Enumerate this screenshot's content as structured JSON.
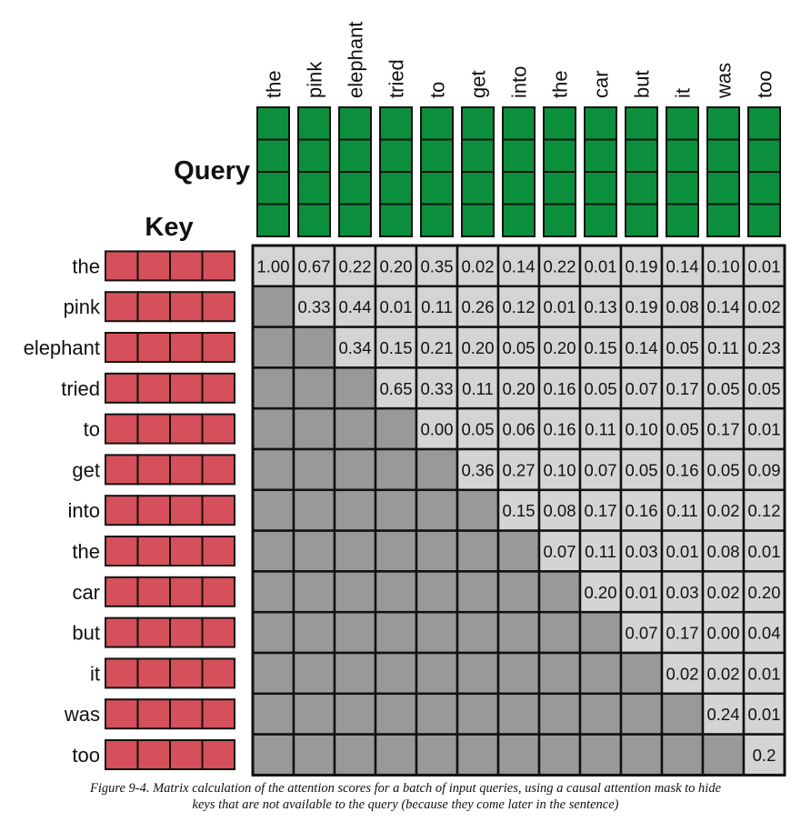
{
  "labels": {
    "query": "Query",
    "key": "Key"
  },
  "tokens": [
    "the",
    "pink",
    "elephant",
    "tried",
    "to",
    "get",
    "into",
    "the",
    "car",
    "but",
    "it",
    "was",
    "too"
  ],
  "scores": [
    [
      "1.00",
      "0.67",
      "0.22",
      "0.20",
      "0.35",
      "0.02",
      "0.14",
      "0.22",
      "0.01",
      "0.19",
      "0.14",
      "0.10",
      "0.01"
    ],
    [
      null,
      "0.33",
      "0.44",
      "0.01",
      "0.11",
      "0.26",
      "0.12",
      "0.01",
      "0.13",
      "0.19",
      "0.08",
      "0.14",
      "0.02"
    ],
    [
      null,
      null,
      "0.34",
      "0.15",
      "0.21",
      "0.20",
      "0.05",
      "0.20",
      "0.15",
      "0.14",
      "0.05",
      "0.11",
      "0.23"
    ],
    [
      null,
      null,
      null,
      "0.65",
      "0.33",
      "0.11",
      "0.20",
      "0.16",
      "0.05",
      "0.07",
      "0.17",
      "0.05",
      "0.05"
    ],
    [
      null,
      null,
      null,
      null,
      "0.00",
      "0.05",
      "0.06",
      "0.16",
      "0.11",
      "0.10",
      "0.05",
      "0.17",
      "0.01"
    ],
    [
      null,
      null,
      null,
      null,
      null,
      "0.36",
      "0.27",
      "0.10",
      "0.07",
      "0.05",
      "0.16",
      "0.05",
      "0.09"
    ],
    [
      null,
      null,
      null,
      null,
      null,
      null,
      "0.15",
      "0.08",
      "0.17",
      "0.16",
      "0.11",
      "0.02",
      "0.12"
    ],
    [
      null,
      null,
      null,
      null,
      null,
      null,
      null,
      "0.07",
      "0.11",
      "0.03",
      "0.01",
      "0.08",
      "0.01"
    ],
    [
      null,
      null,
      null,
      null,
      null,
      null,
      null,
      null,
      "0.20",
      "0.01",
      "0.03",
      "0.02",
      "0.20"
    ],
    [
      null,
      null,
      null,
      null,
      null,
      null,
      null,
      null,
      null,
      "0.07",
      "0.17",
      "0.00",
      "0.04"
    ],
    [
      null,
      null,
      null,
      null,
      null,
      null,
      null,
      null,
      null,
      null,
      "0.02",
      "0.02",
      "0.01"
    ],
    [
      null,
      null,
      null,
      null,
      null,
      null,
      null,
      null,
      null,
      null,
      null,
      "0.24",
      "0.01"
    ],
    [
      null,
      null,
      null,
      null,
      null,
      null,
      null,
      null,
      null,
      null,
      null,
      null,
      "0.2"
    ]
  ],
  "colors": {
    "query_vector": "#0c8f3c",
    "key_vector": "#d5505a",
    "visible_cell": "#d4d4d4",
    "masked_cell": "#999999",
    "line": "#111111"
  },
  "caption": {
    "line1": "Figure 9-4. Matrix calculation of the attention scores for a batch of input queries, using a causal attention mask to hide",
    "line2": "keys that are not available to the query (because they come later in the sentence)"
  }
}
